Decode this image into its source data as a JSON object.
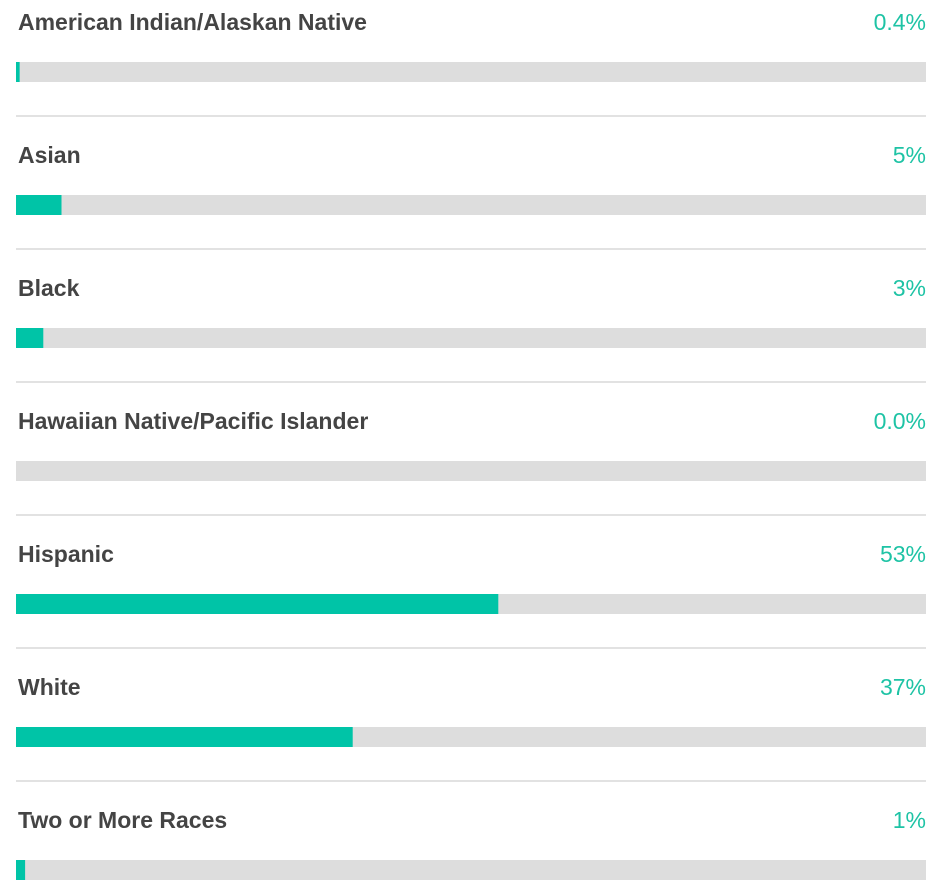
{
  "chart_data": {
    "type": "bar",
    "categories": [
      "American Indian/Alaskan Native",
      "Asian",
      "Black",
      "Hawaiian Native/Pacific Islander",
      "Hispanic",
      "White",
      "Two or More Races"
    ],
    "values": [
      0.4,
      5,
      3,
      0,
      53,
      37,
      1
    ],
    "value_labels": [
      "0.4%",
      "5%",
      "3%",
      "0.0%",
      "53%",
      "37%",
      "1%"
    ],
    "xlim": [
      0,
      100
    ],
    "color": "#00c4a7",
    "track_color": "#dddddd"
  }
}
